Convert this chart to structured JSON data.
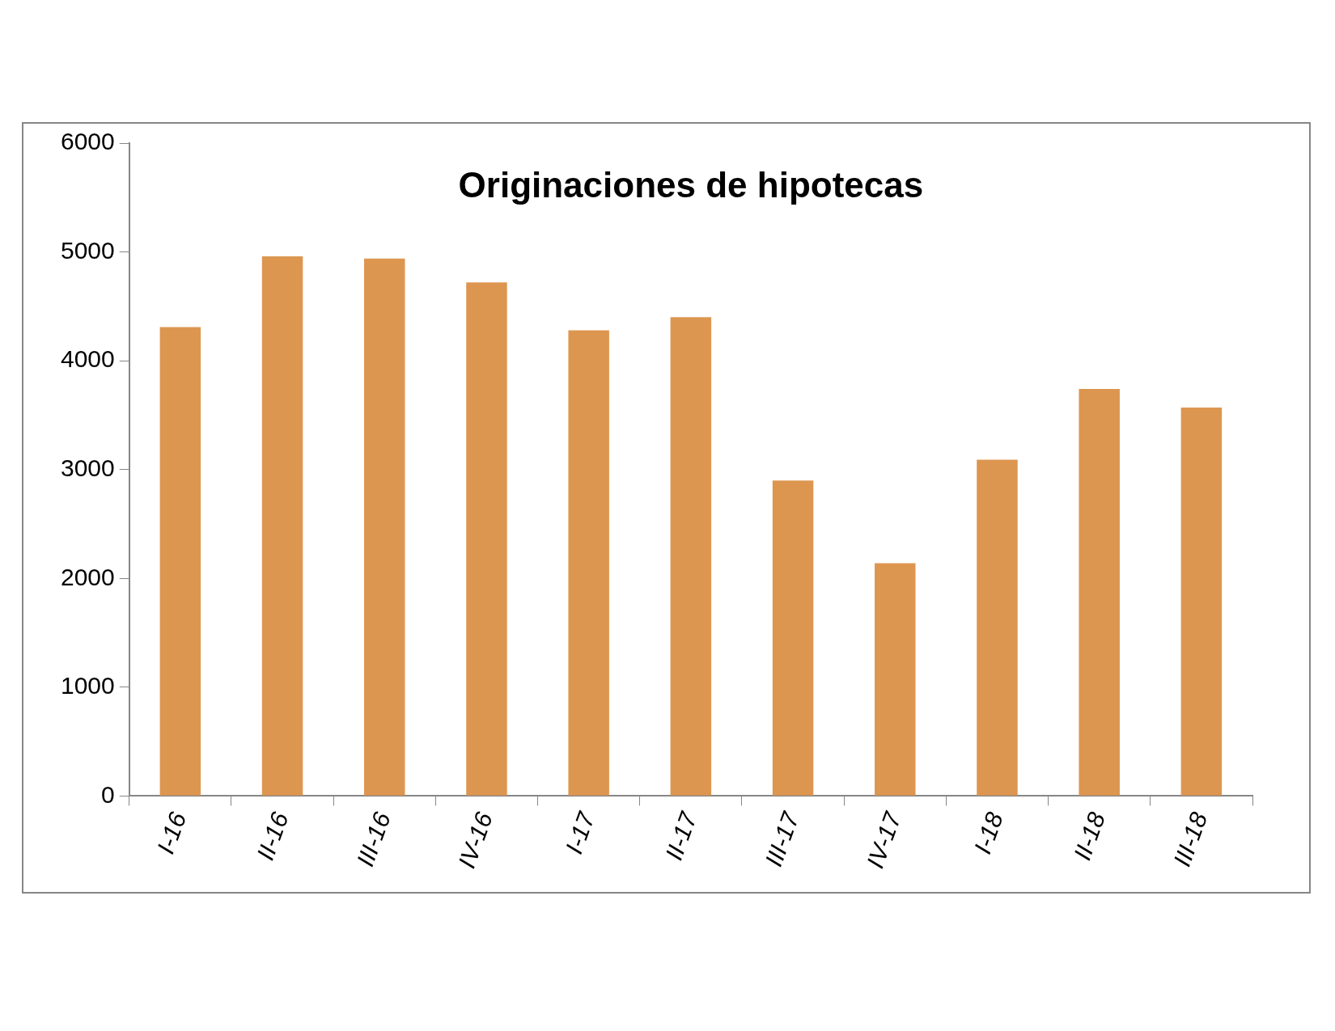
{
  "chart_data": {
    "type": "bar",
    "title": "Originaciones de hipotecas",
    "categories": [
      "I-16",
      "II-16",
      "III-16",
      "IV-16",
      "I-17",
      "II-17",
      "III-17",
      "IV-17",
      "I-18",
      "II-18",
      "III-18"
    ],
    "values": [
      4310,
      4960,
      4940,
      4720,
      4280,
      4400,
      2900,
      2140,
      3090,
      3740,
      3570
    ],
    "color": "#dd9650",
    "ylim": [
      0,
      6000
    ],
    "yticks": [
      0,
      1000,
      2000,
      3000,
      4000,
      5000,
      6000
    ],
    "grid": false,
    "legend": false
  }
}
